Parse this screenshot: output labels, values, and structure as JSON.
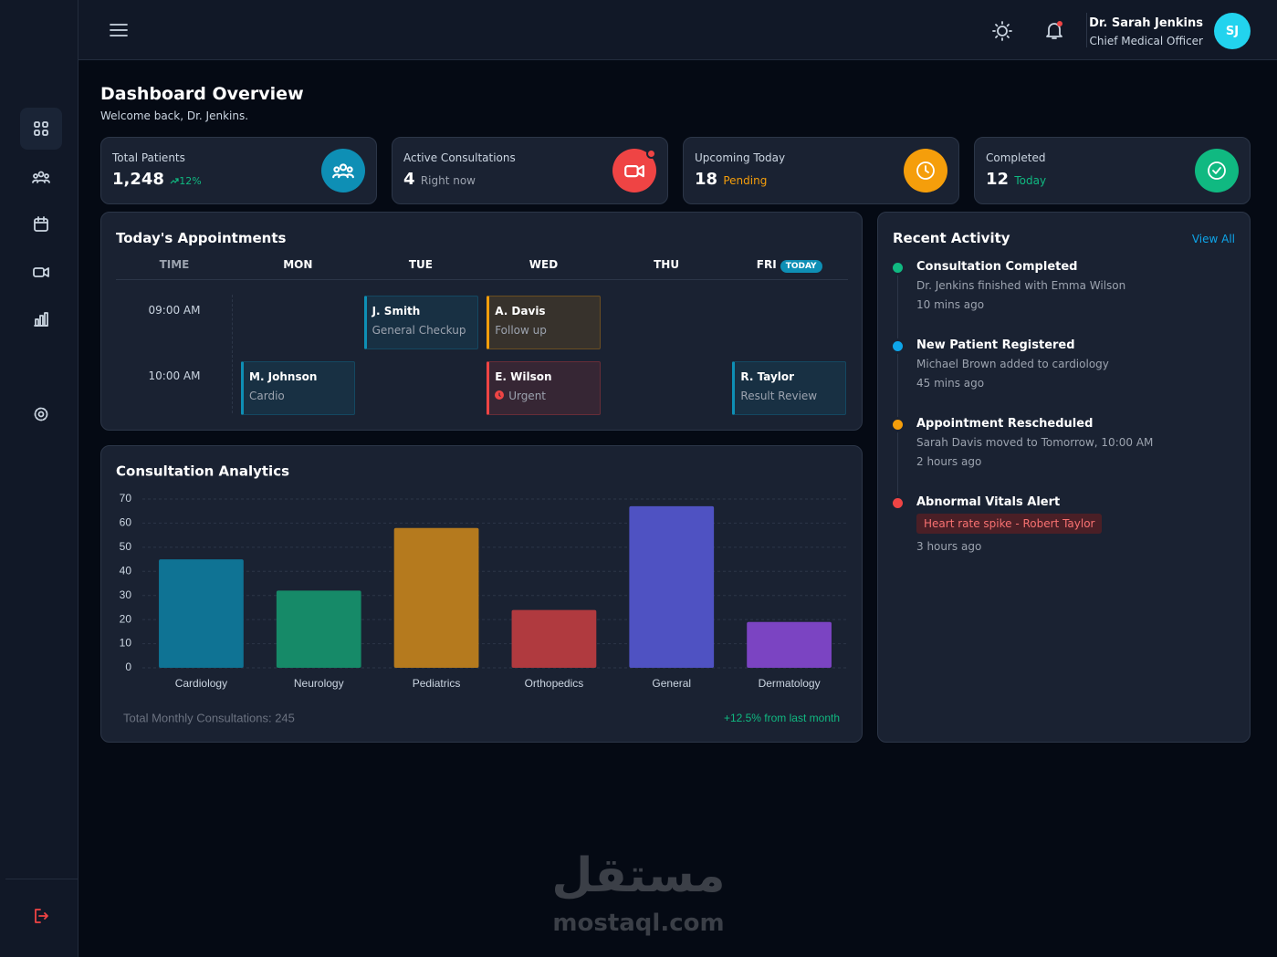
{
  "header": {
    "user_name": "Dr. Sarah Jenkins",
    "user_role": "Chief Medical Officer",
    "avatar": "SJ",
    "avatar_color": "#22d3ee"
  },
  "page": {
    "title": "Dashboard Overview",
    "subtitle": "Welcome back, Dr. Jenkins."
  },
  "stats": [
    {
      "label": "Total Patients",
      "value": "1,248",
      "note": "12%",
      "note_color": "#10b981",
      "icon_color": "#0e8fb5"
    },
    {
      "label": "Active Consultations",
      "value": 4,
      "note": "Right now",
      "note_color": "#9ca3af",
      "icon_color": "#ef4444"
    },
    {
      "label": "Upcoming Today",
      "value": 18,
      "note": "Pending",
      "note_color": "#f59e0b",
      "icon_color": "#f59e0b"
    },
    {
      "label": "Completed",
      "value": 12,
      "note": "Today",
      "note_color": "#10b981",
      "icon_color": "#10b981"
    }
  ],
  "appointments": {
    "title": "Today's Appointments",
    "columns": [
      "TIME",
      "MON",
      "TUE",
      "WED",
      "THU",
      "FRI"
    ],
    "today_column": 5,
    "today_badge": "TODAY",
    "rows": [
      {
        "time": "09:00 AM",
        "cells": [
          null,
          {
            "name": "J. Smith",
            "detail": "General Checkup",
            "color": "#0e8fb5"
          },
          {
            "name": "A. Davis",
            "detail": "Follow up",
            "color": "#f59e0b"
          },
          null,
          null
        ]
      },
      {
        "time": "10:00 AM",
        "cells": [
          {
            "name": "M. Johnson",
            "detail": "Cardio",
            "color": "#0e8fb5"
          },
          null,
          {
            "name": "E. Wilson",
            "detail": "Urgent",
            "color": "#ef4444",
            "alert": true
          },
          null,
          {
            "name": "R. Taylor",
            "detail": "Result Review",
            "color": "#0e8fb5"
          }
        ]
      }
    ]
  },
  "activity": {
    "title": "Recent Activity",
    "link": "View All",
    "items": [
      {
        "title": "Consultation Completed",
        "text": "Dr. Jenkins finished with Emma Wilson",
        "time": "10 mins ago",
        "color": "#10b981"
      },
      {
        "title": "New Patient Registered",
        "text": "Michael Brown added to cardiology",
        "time": "45 mins ago",
        "color": "#0ea5e9"
      },
      {
        "title": "Appointment Rescheduled",
        "text": "Sarah Davis moved to Tomorrow, 10:00 AM",
        "time": "2 hours ago",
        "color": "#f59e0b"
      },
      {
        "title": "Abnormal Vitals Alert",
        "alert": "Heart rate spike - Robert Taylor",
        "time": "3 hours ago",
        "color": "#ef4444"
      }
    ]
  },
  "chart_data": {
    "type": "bar",
    "title": "Consultation Analytics",
    "categories": [
      "Cardiology",
      "Neurology",
      "Pediatrics",
      "Orthopedics",
      "General",
      "Dermatology"
    ],
    "values": [
      45,
      32,
      58,
      24,
      67,
      19
    ],
    "colors": [
      "#0f7394",
      "#168a68",
      "#b57a1e",
      "#b03a3f",
      "#4f52c2",
      "#7b44c2"
    ],
    "ylim": [
      0,
      70
    ],
    "yticks": [
      0,
      10,
      20,
      30,
      40,
      50,
      60,
      70
    ],
    "grid": true,
    "footer": "Total Monthly Consultations: 245",
    "change": "+12.5% from last month"
  },
  "watermark": {
    "arabic": "مستقل",
    "latin": "mostaql.com"
  }
}
